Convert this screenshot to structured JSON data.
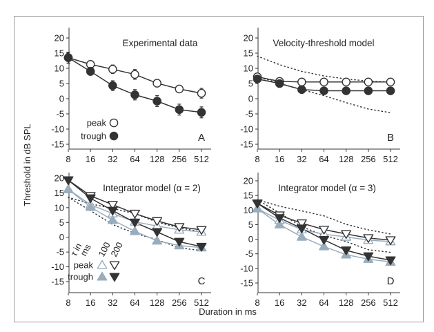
{
  "figure": {
    "ylabel": "Threshold in dB SPL",
    "xlabel": "Duration in ms"
  },
  "chart_data": [
    {
      "id": "A",
      "type": "line",
      "title": "Experimental data",
      "panel_letter": "A",
      "x": [
        8,
        16,
        32,
        64,
        128,
        256,
        512
      ],
      "xscale": "log2",
      "ylim": [
        -15,
        20
      ],
      "yticks": [
        20,
        15,
        10,
        5,
        0,
        -5,
        -10,
        -15
      ],
      "series": [
        {
          "name": "peak",
          "marker": "circle-open",
          "color": "#333333",
          "values": [
            13.5,
            11.3,
            9.7,
            8.0,
            5.1,
            3.2,
            1.8
          ],
          "errors": [
            1.8,
            1.2,
            1.4,
            1.6,
            1.2,
            1.0,
            1.6
          ]
        },
        {
          "name": "trough",
          "marker": "circle-filled",
          "color": "#333333",
          "values": [
            13.5,
            9.0,
            4.3,
            1.3,
            -0.8,
            -3.6,
            -4.5
          ],
          "errors": [
            1.8,
            1.3,
            1.6,
            1.7,
            1.8,
            1.8,
            1.8
          ]
        }
      ],
      "legend": [
        {
          "label": "peak",
          "marker": "circle-open"
        },
        {
          "label": "trough",
          "marker": "circle-filled"
        }
      ]
    },
    {
      "id": "B",
      "type": "line",
      "title": "Velocity-threshold model",
      "panel_letter": "B",
      "x": [
        8,
        16,
        32,
        64,
        128,
        256,
        512
      ],
      "xscale": "log2",
      "ylim": [
        -15,
        20
      ],
      "yticks": [
        20,
        15,
        10,
        5,
        0,
        -5,
        -10,
        -15
      ],
      "series": [
        {
          "marker": "circle-open",
          "color": "#333333",
          "values": [
            7.2,
            5.7,
            5.5,
            5.5,
            5.5,
            5.5,
            5.5
          ]
        },
        {
          "marker": "circle-filled",
          "color": "#333333",
          "values": [
            6.5,
            5.0,
            3.0,
            2.6,
            2.6,
            2.6,
            2.6
          ]
        },
        {
          "style": "dotted",
          "color": "#333333",
          "values": [
            14.0,
            11.2,
            9.0,
            7.5,
            6.5,
            5.8,
            5.5
          ]
        },
        {
          "style": "dotted",
          "color": "#333333",
          "values": [
            7.3,
            5.0,
            3.0,
            1.0,
            -1.3,
            -3.4,
            -4.6
          ]
        }
      ]
    },
    {
      "id": "C",
      "type": "line",
      "title": "Integrator model (α = 2)",
      "panel_letter": "C",
      "x": [
        8,
        16,
        32,
        64,
        128,
        256,
        512
      ],
      "xscale": "log2",
      "ylim": [
        -15,
        20
      ],
      "yticks": [
        20,
        15,
        10,
        5,
        0,
        -5,
        -10,
        -15
      ],
      "series": [
        {
          "marker": "triangle-up-open",
          "color": "#9aadbd",
          "values": [
            16.2,
            11.0,
            8.0,
            5.2,
            3.8,
            2.5,
            1.8
          ]
        },
        {
          "marker": "triangle-up-filled",
          "color": "#9aadbd",
          "values": [
            16.2,
            10.2,
            5.8,
            2.0,
            -1.2,
            -2.8,
            -3.5
          ]
        },
        {
          "marker": "triangle-down-open",
          "color": "#333333",
          "values": [
            19.3,
            14.0,
            11.0,
            8.0,
            5.5,
            3.5,
            2.5
          ]
        },
        {
          "marker": "triangle-down-filled",
          "color": "#333333",
          "values": [
            19.3,
            13.2,
            9.0,
            5.0,
            1.8,
            -1.5,
            -3.2
          ]
        },
        {
          "style": "dotted",
          "color": "#333333",
          "values": [
            13.5,
            11.3,
            9.7,
            8.0,
            5.1,
            3.2,
            1.8
          ]
        },
        {
          "style": "dotted",
          "color": "#333333",
          "values": [
            13.5,
            9.0,
            4.3,
            1.3,
            -0.8,
            -3.6,
            -4.5
          ]
        }
      ],
      "legend": {
        "header_rotated": [
          "τ in",
          "ms"
        ],
        "columns": [
          "100",
          "200"
        ],
        "rows": [
          {
            "label": "peak",
            "markers": [
              "triangle-up-open",
              "triangle-down-open"
            ],
            "colors": [
              "#9aadbd",
              "#333333"
            ]
          },
          {
            "label": "trough",
            "markers": [
              "triangle-up-filled",
              "triangle-down-filled"
            ],
            "colors": [
              "#9aadbd",
              "#333333"
            ]
          }
        ]
      }
    },
    {
      "id": "D",
      "type": "line",
      "title": "Integrator model (α = 3)",
      "panel_letter": "D",
      "x": [
        8,
        16,
        32,
        64,
        128,
        256,
        512
      ],
      "xscale": "log2",
      "ylim": [
        -15,
        20
      ],
      "yticks": [
        20,
        15,
        10,
        5,
        0,
        -5,
        -10,
        -15
      ],
      "series": [
        {
          "marker": "triangle-up-open",
          "color": "#9aadbd",
          "values": [
            10.5,
            6.5,
            3.3,
            1.7,
            0.8,
            -0.3,
            -0.8
          ]
        },
        {
          "marker": "triangle-up-filled",
          "color": "#9aadbd",
          "values": [
            10.5,
            5.0,
            0.8,
            -2.5,
            -5.3,
            -6.8,
            -7.8
          ]
        },
        {
          "marker": "triangle-down-open",
          "color": "#333333",
          "values": [
            12.3,
            8.2,
            5.5,
            3.3,
            1.8,
            0.4,
            -0.3
          ]
        },
        {
          "marker": "triangle-down-filled",
          "color": "#333333",
          "values": [
            12.3,
            7.3,
            3.7,
            -0.2,
            -3.8,
            -5.8,
            -7.2
          ]
        },
        {
          "style": "dotted",
          "color": "#333333",
          "values": [
            13.5,
            11.3,
            9.7,
            8.0,
            5.1,
            3.2,
            1.8
          ]
        },
        {
          "style": "dotted",
          "color": "#333333",
          "values": [
            13.5,
            9.0,
            4.3,
            1.3,
            -0.8,
            -3.6,
            -4.5
          ]
        }
      ]
    }
  ]
}
